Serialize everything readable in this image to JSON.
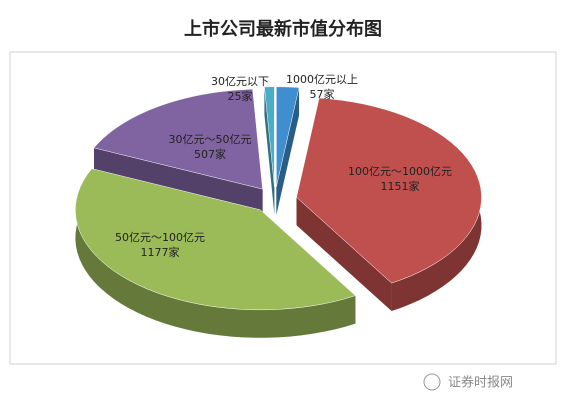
{
  "chart_data": {
    "type": "pie3d",
    "title": "上市公司最新市值分布图",
    "categories": [
      "1000亿元以上",
      "100亿元～1000亿元",
      "50亿元～100亿元",
      "30亿元～50亿元",
      "30亿元以下"
    ],
    "values": [
      57,
      1151,
      1177,
      507,
      25
    ],
    "value_labels": [
      "57家",
      "1151家",
      "1177家",
      "507家",
      "25家"
    ],
    "colors": [
      "#3f8fd0",
      "#c0504d",
      "#9bbb59",
      "#8064a2",
      "#4bacc6"
    ],
    "watermark": "证券时报网"
  }
}
